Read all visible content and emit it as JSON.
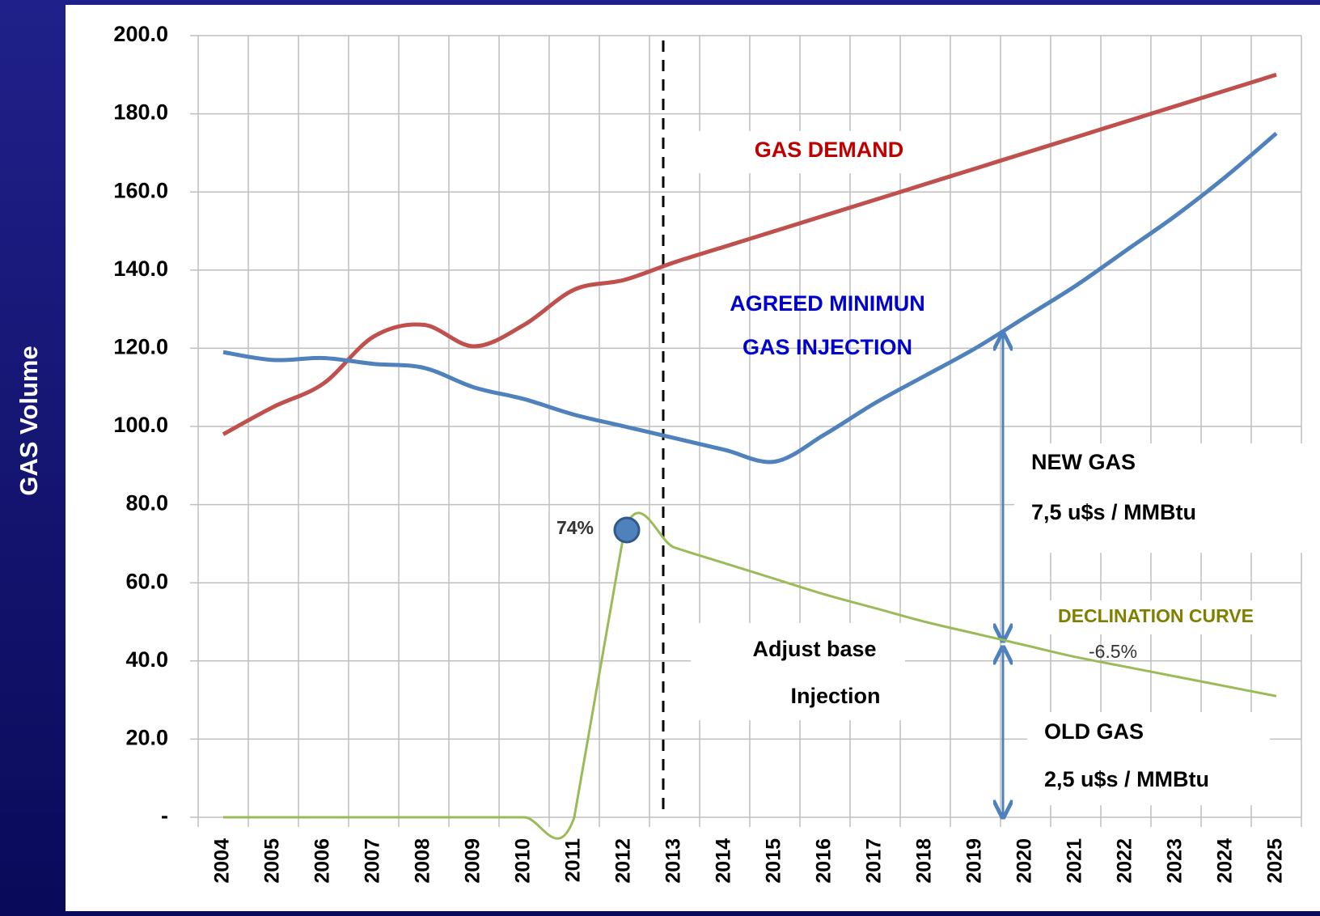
{
  "chart_data": {
    "type": "line",
    "y_label": "GAS Volume",
    "categories": [
      "2004",
      "2005",
      "2006",
      "2007",
      "2008",
      "2009",
      "2010",
      "2011",
      "2012",
      "2013",
      "2014",
      "2015",
      "2016",
      "2017",
      "2018",
      "2019",
      "2020",
      "2021",
      "2022",
      "2023",
      "2024",
      "2025"
    ],
    "ylim": [
      0,
      200
    ],
    "yticks": [
      {
        "value": 0,
        "label": "-"
      },
      {
        "value": 20,
        "label": "20.0"
      },
      {
        "value": 40,
        "label": "40.0"
      },
      {
        "value": 60,
        "label": "60.0"
      },
      {
        "value": 80,
        "label": "80.0"
      },
      {
        "value": 100,
        "label": "100.0"
      },
      {
        "value": 120,
        "label": "120.0"
      },
      {
        "value": 140,
        "label": "140.0"
      },
      {
        "value": 160,
        "label": "160.0"
      },
      {
        "value": 180,
        "label": "180.0"
      },
      {
        "value": 200,
        "label": "200.0"
      }
    ],
    "grid": true,
    "series": [
      {
        "color": "#c0504d",
        "values": [
          98,
          105,
          111,
          123,
          126,
          120.5,
          126,
          135,
          137.5,
          142,
          146,
          150,
          154,
          158,
          162,
          166,
          170,
          174,
          178,
          182,
          186,
          190
        ]
      },
      {
        "color": "#4f81bd",
        "values": [
          119,
          117,
          117.5,
          116,
          115,
          110,
          107,
          103,
          100,
          97,
          94,
          91,
          98,
          106,
          113,
          120,
          128,
          136,
          145,
          154,
          164,
          175
        ]
      },
      {
        "color": "#9bbb59",
        "values": [
          0,
          0,
          0,
          0,
          0,
          0,
          0,
          0,
          73.5,
          69,
          65,
          61,
          57,
          53.5,
          50,
          47,
          44,
          41,
          38.5,
          36,
          33.5,
          31
        ]
      }
    ],
    "annotations": [
      "GAS DEMAND",
      "AGREED MINIMUN",
      "GAS INJECTION",
      "NEW GAS",
      "7,5 u$s / MMBtu",
      "DECLINATION CURVE",
      "-6.5%",
      "Adjust base",
      "Injection",
      "OLD GAS",
      "2,5 u$s / MMBtu",
      "74%"
    ]
  }
}
